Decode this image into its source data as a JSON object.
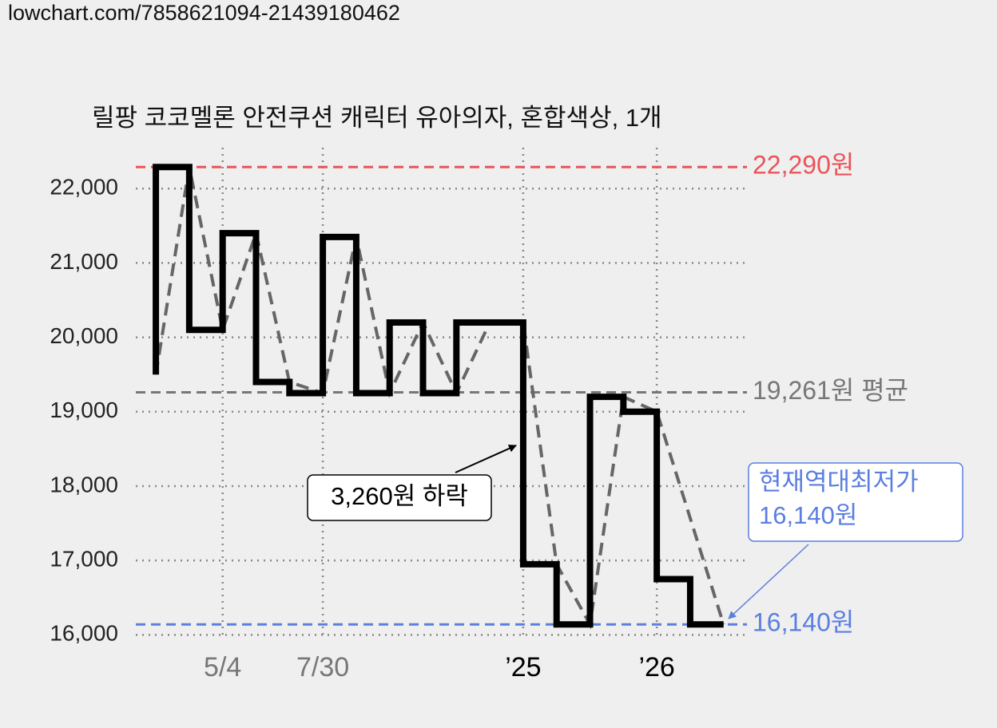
{
  "page_url": "lowchart.com/7858621094-21439180462",
  "chart_data": {
    "type": "step",
    "title": "릴팡 코코멜론 안전쿠션 캐릭터 유아의자, 혼합색상, 1개",
    "series": [
      {
        "color": "#000000",
        "x": [
          0,
          0,
          1,
          2,
          3,
          4,
          5,
          6,
          7,
          8,
          9,
          11,
          12,
          13,
          14,
          15,
          16,
          17
        ],
        "values": [
          19500,
          22290,
          20100,
          21400,
          19400,
          19250,
          21350,
          19250,
          20200,
          19250,
          20200,
          16950,
          16140,
          19200,
          19000,
          16750,
          16140,
          16140
        ]
      },
      {
        "color": "#666666",
        "dashed": true,
        "x": [
          0,
          1,
          2,
          3,
          4,
          5,
          6,
          7,
          8,
          9,
          10,
          11,
          12,
          13,
          14,
          15,
          17
        ],
        "values": [
          19500,
          22290,
          20100,
          21400,
          19400,
          19250,
          21350,
          19250,
          20200,
          19250,
          20200,
          20200,
          16950,
          16140,
          19200,
          19000,
          16140
        ]
      }
    ],
    "xlim": [
      -0.6,
      17.7
    ],
    "xticks": [
      {
        "value": 2,
        "label": "5/4"
      },
      {
        "value": 5,
        "label": "7/30"
      },
      {
        "value": 11,
        "label": "’25"
      },
      {
        "value": 15,
        "label": "’26"
      }
    ],
    "ylim": [
      15950,
      22550
    ],
    "yticks": [
      {
        "value": 16000,
        "label": "16,000"
      },
      {
        "value": 17000,
        "label": "17,000"
      },
      {
        "value": 18000,
        "label": "18,000"
      },
      {
        "value": 19000,
        "label": "19,000"
      },
      {
        "value": 20000,
        "label": "20,000"
      },
      {
        "value": 21000,
        "label": "21,000"
      },
      {
        "value": 22000,
        "label": "22,000"
      }
    ],
    "grid": true,
    "reference_lines": [
      {
        "value": 22290,
        "label": "22,290원",
        "color": "#e8545a"
      },
      {
        "value": 19261,
        "label": "19,261원 평균",
        "color": "#777777"
      },
      {
        "value": 16140,
        "label": "16,140원",
        "color": "#5b7fe0"
      }
    ],
    "annotations": [
      {
        "text": "3,260원 하락"
      },
      {
        "text": [
          "현재역대최저가",
          "16,140원"
        ],
        "color": "#5b7fe0"
      }
    ]
  }
}
